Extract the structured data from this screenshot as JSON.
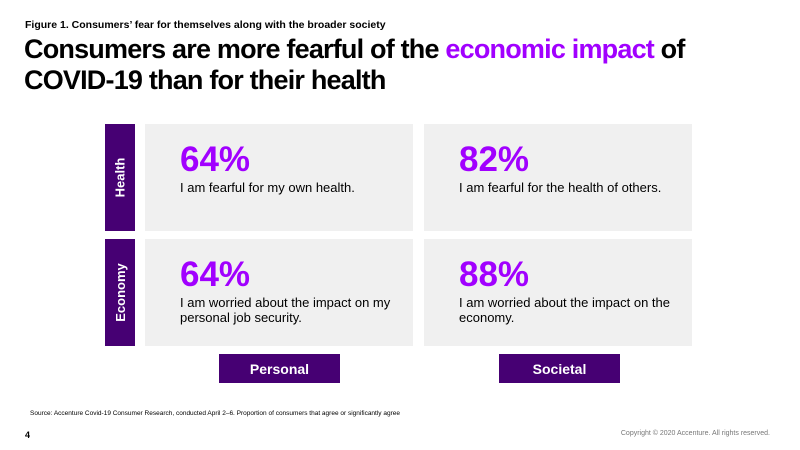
{
  "figure_label": "Figure 1. Consumers’ fear for themselves along with the broader society",
  "title": {
    "part1": "Consumers are more fearful of the ",
    "accent": "economic impact",
    "part2": " of COVID-19 than for their health"
  },
  "colors": {
    "accent": "#a100ff",
    "dark_purple": "#460073",
    "cell_bg": "#f0f0f0"
  },
  "chart_data": {
    "type": "table",
    "rows": [
      "Health",
      "Economy"
    ],
    "columns": [
      "Personal",
      "Societal"
    ],
    "unit": "%",
    "cells": [
      {
        "row": "Health",
        "column": "Personal",
        "value": 64,
        "label": "64%",
        "text": "I am fearful for my own health."
      },
      {
        "row": "Health",
        "column": "Societal",
        "value": 82,
        "label": "82%",
        "text": "I am fearful for the health of others."
      },
      {
        "row": "Economy",
        "column": "Personal",
        "value": 64,
        "label": "64%",
        "text": "I am worried about the impact on my personal job security."
      },
      {
        "row": "Economy",
        "column": "Societal",
        "value": 88,
        "label": "88%",
        "text": "I am worried about the impact on the economy."
      }
    ]
  },
  "footer": {
    "source": "Source: Accenture Covid-19 Consumer Research, conducted April 2–6. Proportion of consumers that agree or significantly agree",
    "page_number": "4",
    "copyright": "Copyright © 2020 Accenture. All rights reserved."
  }
}
